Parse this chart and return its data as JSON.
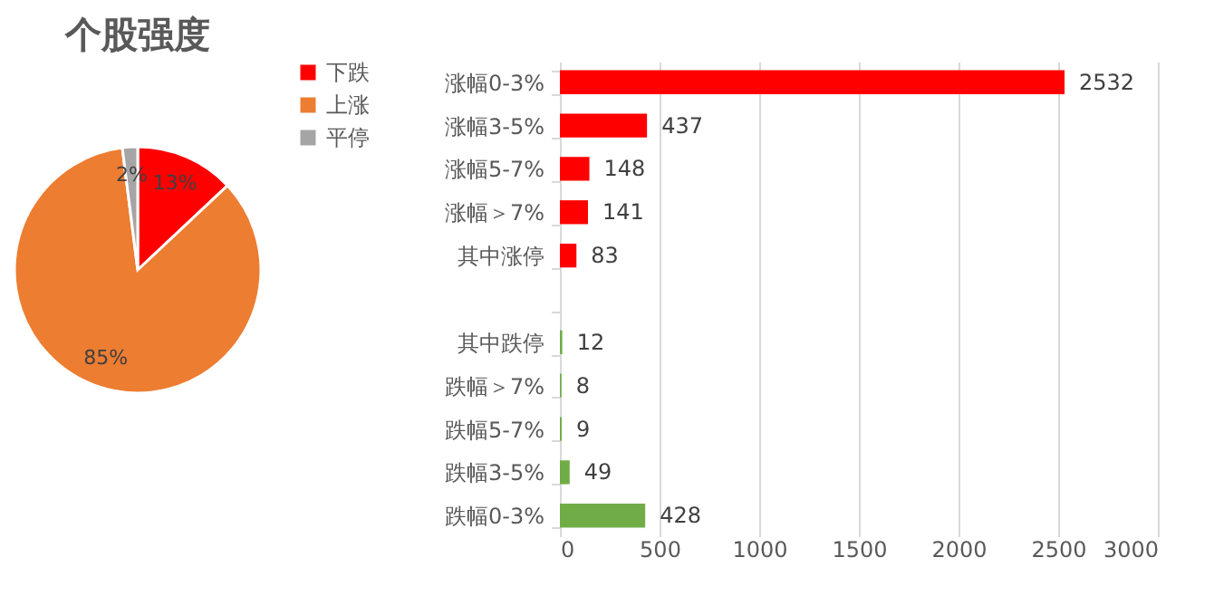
{
  "chart_data": [
    {
      "type": "pie",
      "title": "个股强度",
      "categories": [
        "下跌",
        "上涨",
        "平停"
      ],
      "values": [
        13,
        85,
        2
      ],
      "colors": [
        "#ff0000",
        "#ed7d31",
        "#a5a5a5"
      ],
      "value_labels": [
        "13%",
        "85%",
        "2%"
      ],
      "legend": "right"
    },
    {
      "type": "bar",
      "orientation": "horizontal",
      "categories": [
        "涨幅0-3%",
        "涨幅3-5%",
        "涨幅5-7%",
        "涨幅＞7%",
        "其中涨停",
        null,
        "其中跌停",
        "跌幅＞7%",
        "跌幅5-7%",
        "跌幅3-5%",
        "跌幅0-3%"
      ],
      "values": [
        2532,
        437,
        148,
        141,
        83,
        null,
        12,
        8,
        9,
        49,
        428
      ],
      "colors": [
        "#ff0000",
        "#ff0000",
        "#ff0000",
        "#ff0000",
        "#ff0000",
        null,
        "#70ad47",
        "#70ad47",
        "#70ad47",
        "#70ad47",
        "#70ad47"
      ],
      "xlim": [
        0,
        3000
      ],
      "xticks": [
        0,
        500,
        1000,
        1500,
        2000,
        2500,
        3000
      ],
      "grid": "x",
      "data_labels": true
    }
  ]
}
